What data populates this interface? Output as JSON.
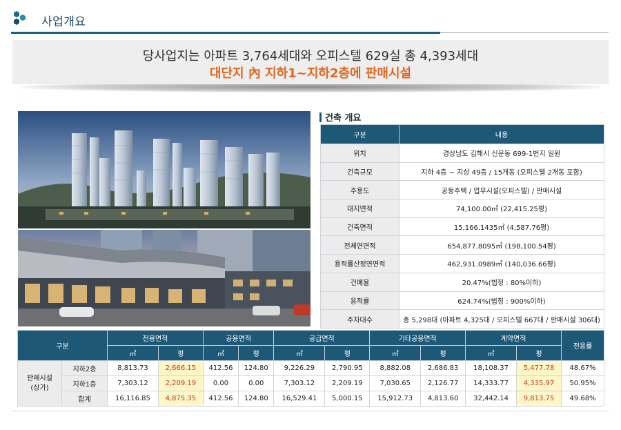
{
  "header": {
    "title": "사업개요"
  },
  "banner": {
    "line1": "당사업지는 아파트 3,764세대와 오피스텔 629실 총 4,393세대",
    "line2": "대단지 內 지하1~지하2층에 판매시설"
  },
  "overview": {
    "title": "건축 개요",
    "headers": [
      "구분",
      "내용"
    ],
    "rows": [
      {
        "label": "위치",
        "value": "경상남도 김해시 신문동 699-1번지 일원"
      },
      {
        "label": "건축규모",
        "value": "지하 4층 ~ 지상 49층 / 15개동 (오피스텔 2개동 포함)"
      },
      {
        "label": "주용도",
        "value": "공동주택 / 업무시설(오피스텔) / 판매시설"
      },
      {
        "label": "대지면적",
        "value": "74,100.00㎡ (22,415.25평)"
      },
      {
        "label": "건축면적",
        "value": "15,166.1435㎡ (4,587.76평)"
      },
      {
        "label": "전체연면적",
        "value": "654,877.8095㎡ (198,100.54평)"
      },
      {
        "label": "용적률산정연면적",
        "value": "462,931.0989㎡ (140,036.66평)"
      },
      {
        "label": "건폐율",
        "value": "20.47%(법정 : 80%이하)"
      },
      {
        "label": "용적률",
        "value": "624.74%(법정 : 900%이하)"
      },
      {
        "label": "주차대수",
        "value": "총 5,298대 (아파트 4,325대 / 오피스텔 667대 / 판매시설 306대)"
      }
    ]
  },
  "area_table": {
    "col_group": "구분",
    "groups": [
      "전용면적",
      "공용면적",
      "공급면적",
      "기타공용면적",
      "계약면적"
    ],
    "ratio_header": "전용률",
    "unit_m2": "㎡",
    "unit_py": "평",
    "row_group": "판매시설\n(상가)",
    "rows": [
      {
        "label": "지하2층",
        "values": [
          "8,813.73",
          "2,666.15",
          "412.56",
          "124.80",
          "9,226.29",
          "2,790.95",
          "8,882.08",
          "2,686.83",
          "18,108.37",
          "5,477.78"
        ],
        "ratio": "48.67%"
      },
      {
        "label": "지하1층",
        "values": [
          "7,303.12",
          "2,209.19",
          "0.00",
          "0.00",
          "7,303.12",
          "2,209.19",
          "7,030.65",
          "2,126.77",
          "14,333.77",
          "4,335.97"
        ],
        "ratio": "50.95%"
      },
      {
        "label": "합계",
        "values": [
          "16,116.85",
          "4,875.35",
          "412.56",
          "124.80",
          "16,529.41",
          "5,000.15",
          "15,912.73",
          "4,813.60",
          "32,442.14",
          "9,813.75"
        ],
        "ratio": "49.68%"
      }
    ]
  },
  "colors": {
    "brand": "#1d5876",
    "accent": "#e2661e",
    "highlight": "#fdf6c6"
  }
}
